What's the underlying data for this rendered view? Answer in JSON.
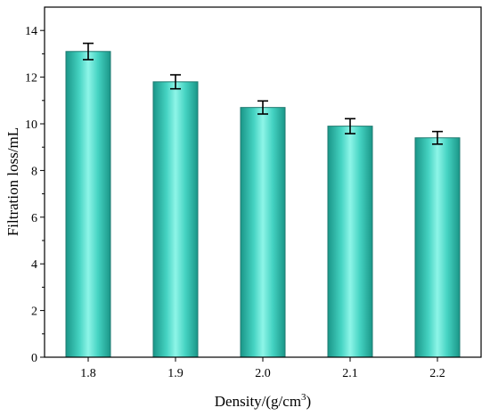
{
  "chart_data": {
    "type": "bar",
    "categories": [
      "1.8",
      "1.9",
      "2.0",
      "2.1",
      "2.2"
    ],
    "values": [
      13.1,
      11.8,
      10.7,
      9.9,
      9.4
    ],
    "errors": [
      0.35,
      0.3,
      0.28,
      0.32,
      0.27
    ],
    "title": "",
    "xlabel": "Density/(g/cm",
    "xlabel_superscript": "3",
    "xlabel_suffix": ")",
    "ylabel": "Filtration loss/mL",
    "ylim": [
      0,
      15
    ],
    "yticks": [
      0,
      2,
      4,
      6,
      8,
      10,
      12,
      14
    ],
    "grid": false,
    "legend": "none",
    "colors": {
      "bar_edge": "#1f7a70",
      "bar_light": "#8ef5e8",
      "bar_mid": "#45d3c2",
      "bar_dark": "#1a9688"
    }
  }
}
